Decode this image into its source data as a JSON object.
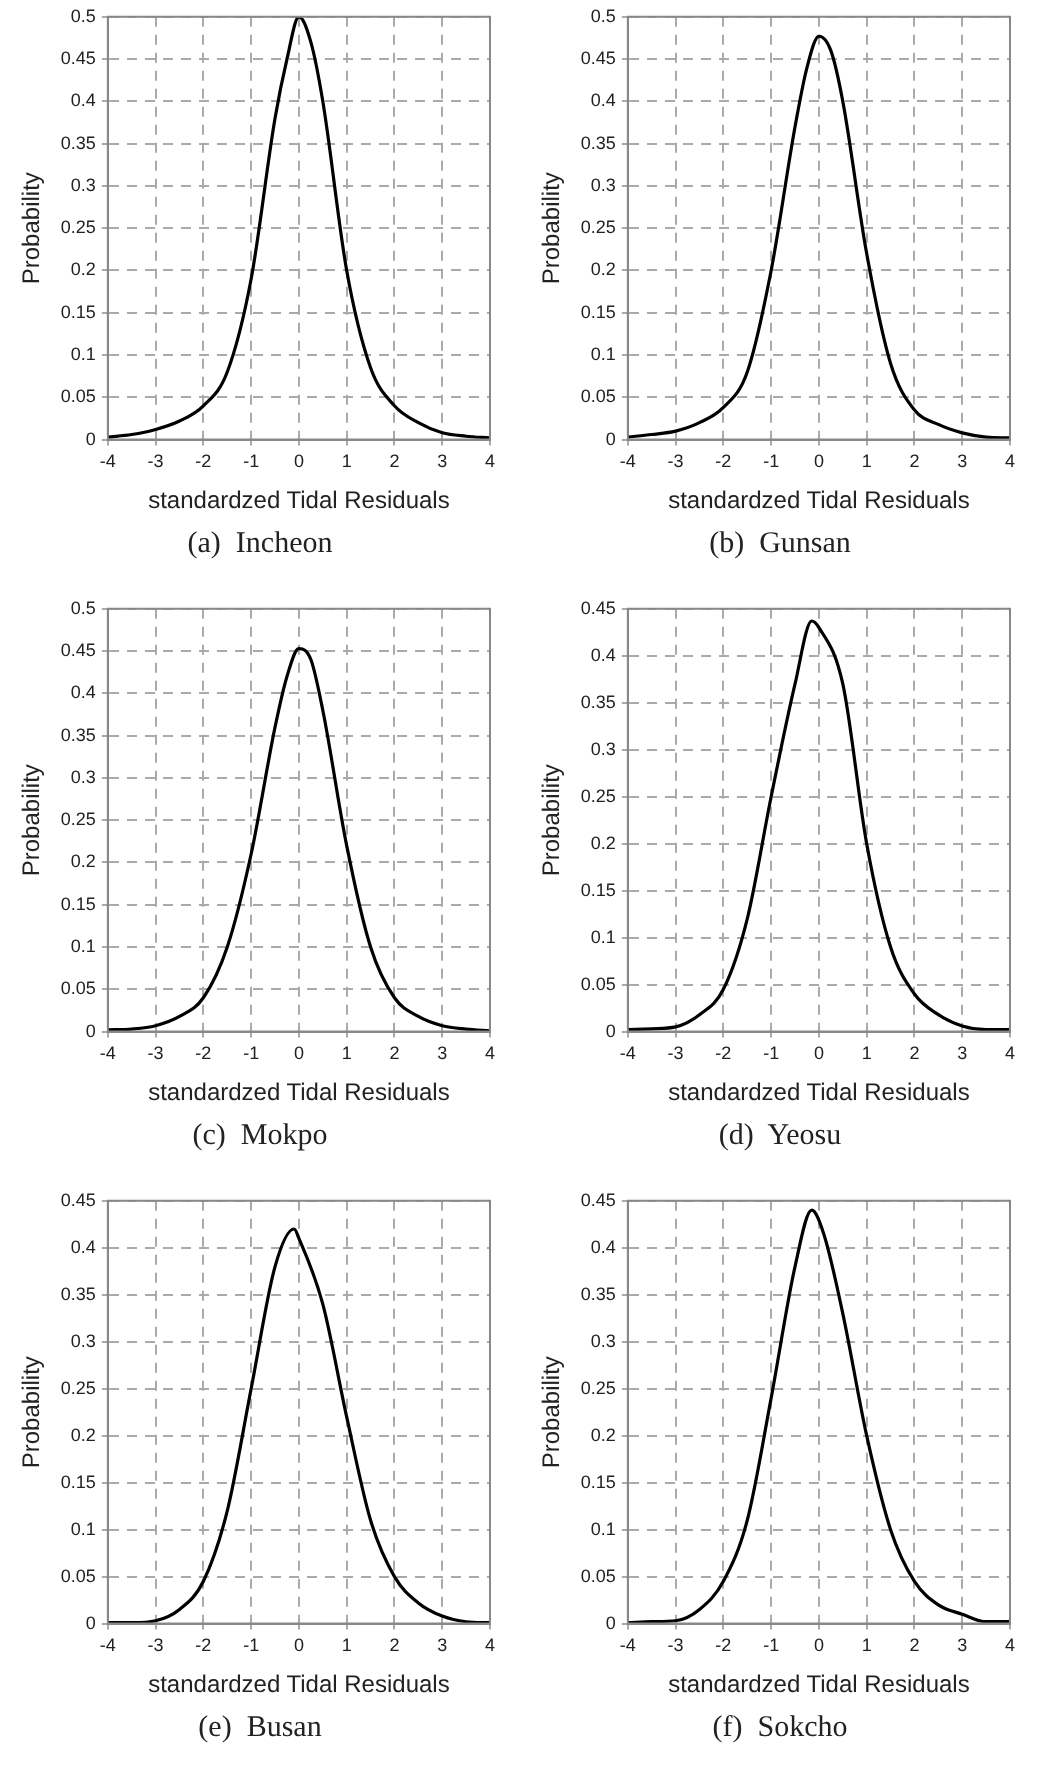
{
  "chart_data": [
    {
      "type": "line",
      "title": "(a)  Incheon",
      "xlabel": "standardzed Tidal Residuals",
      "ylabel": "Probability",
      "xlim": [
        -4,
        4
      ],
      "xticks": [
        -4,
        -3,
        -2,
        -1,
        0,
        1,
        2,
        3,
        4
      ],
      "ylim": [
        0,
        0.5
      ],
      "yticks": [
        0,
        0.05,
        0.1,
        0.15,
        0.2,
        0.25,
        0.3,
        0.35,
        0.4,
        0.45,
        0.5
      ],
      "grid": true,
      "legend": false,
      "marker": "none",
      "line_style": "solid",
      "x": [
        -4,
        -3.5,
        -3,
        -2.5,
        -2,
        -1.5,
        -1,
        -0.5,
        -0.25,
        0,
        0.25,
        0.5,
        1,
        1.5,
        2,
        2.5,
        3,
        3.5,
        4
      ],
      "series": [
        {
          "color": "#000000",
          "values": [
            0.003,
            0.006,
            0.012,
            0.022,
            0.04,
            0.08,
            0.19,
            0.38,
            0.45,
            0.5,
            0.47,
            0.4,
            0.2,
            0.085,
            0.04,
            0.02,
            0.008,
            0.004,
            0.002
          ]
        }
      ]
    },
    {
      "type": "line",
      "title": "(b)  Gunsan",
      "xlabel": "standardzed Tidal Residuals",
      "ylabel": "Probability",
      "xlim": [
        -4,
        4
      ],
      "xticks": [
        -4,
        -3,
        -2,
        -1,
        0,
        1,
        2,
        3,
        4
      ],
      "ylim": [
        0,
        0.5
      ],
      "yticks": [
        0,
        0.05,
        0.1,
        0.15,
        0.2,
        0.25,
        0.3,
        0.35,
        0.4,
        0.45,
        0.5
      ],
      "grid": true,
      "legend": false,
      "marker": "none",
      "line_style": "solid",
      "x": [
        -4,
        -3.5,
        -3,
        -2.5,
        -2,
        -1.5,
        -1,
        -0.5,
        -0.25,
        0,
        0.25,
        0.5,
        1,
        1.5,
        2,
        2.5,
        3,
        3.5,
        4
      ],
      "series": [
        {
          "color": "#000000",
          "values": [
            0.003,
            0.006,
            0.01,
            0.02,
            0.038,
            0.08,
            0.2,
            0.37,
            0.44,
            0.477,
            0.46,
            0.4,
            0.22,
            0.09,
            0.035,
            0.018,
            0.008,
            0.003,
            0.002
          ]
        }
      ]
    },
    {
      "type": "line",
      "title": "(c)  Mokpo",
      "xlabel": "standardzed Tidal Residuals",
      "ylabel": "Probability",
      "xlim": [
        -4,
        4
      ],
      "xticks": [
        -4,
        -3,
        -2,
        -1,
        0,
        1,
        2,
        3,
        4
      ],
      "ylim": [
        0,
        0.5
      ],
      "yticks": [
        0,
        0.05,
        0.1,
        0.15,
        0.2,
        0.25,
        0.3,
        0.35,
        0.4,
        0.45,
        0.5
      ],
      "grid": true,
      "legend": false,
      "marker": "none",
      "line_style": "solid",
      "x": [
        -4,
        -3.5,
        -3,
        -2.5,
        -2,
        -1.5,
        -1,
        -0.5,
        -0.25,
        0,
        0.25,
        0.5,
        1,
        1.5,
        2,
        2.5,
        3,
        3.5,
        4
      ],
      "series": [
        {
          "color": "#000000",
          "values": [
            0.002,
            0.003,
            0.007,
            0.018,
            0.04,
            0.1,
            0.21,
            0.36,
            0.42,
            0.453,
            0.44,
            0.38,
            0.22,
            0.1,
            0.04,
            0.018,
            0.007,
            0.003,
            0.001
          ]
        }
      ]
    },
    {
      "type": "line",
      "title": "(d)  Yeosu",
      "xlabel": "standardzed Tidal Residuals",
      "ylabel": "Probability",
      "xlim": [
        -4,
        4
      ],
      "xticks": [
        -4,
        -3,
        -2,
        -1,
        0,
        1,
        2,
        3,
        4
      ],
      "ylim": [
        0,
        0.45
      ],
      "yticks": [
        0,
        0.05,
        0.1,
        0.15,
        0.2,
        0.25,
        0.3,
        0.35,
        0.4,
        0.45
      ],
      "grid": true,
      "legend": false,
      "marker": "none",
      "line_style": "solid",
      "x": [
        -4,
        -3.5,
        -3,
        -2.5,
        -2,
        -1.5,
        -1,
        -0.5,
        -0.15,
        0,
        0.5,
        1,
        1.5,
        2,
        2.5,
        3,
        3.5,
        4
      ],
      "series": [
        {
          "color": "#000000",
          "values": [
            0.002,
            0.003,
            0.005,
            0.018,
            0.045,
            0.12,
            0.25,
            0.37,
            0.437,
            0.43,
            0.37,
            0.2,
            0.09,
            0.04,
            0.018,
            0.006,
            0.002,
            0.002
          ]
        }
      ]
    },
    {
      "type": "line",
      "title": "(e)  Busan",
      "xlabel": "standardzed Tidal Residuals",
      "ylabel": "Probability",
      "xlim": [
        -4,
        4
      ],
      "xticks": [
        -4,
        -3,
        -2,
        -1,
        0,
        1,
        2,
        3,
        4
      ],
      "ylim": [
        0,
        0.45
      ],
      "yticks": [
        0,
        0.05,
        0.1,
        0.15,
        0.2,
        0.25,
        0.3,
        0.35,
        0.4,
        0.45
      ],
      "grid": true,
      "legend": false,
      "marker": "none",
      "line_style": "solid",
      "x": [
        -4,
        -3.5,
        -3,
        -2.5,
        -2,
        -1.5,
        -1,
        -0.5,
        -0.1,
        0,
        0.5,
        1,
        1.5,
        2,
        2.5,
        3,
        3.5,
        4
      ],
      "series": [
        {
          "color": "#000000",
          "values": [
            0.001,
            0.001,
            0.003,
            0.015,
            0.045,
            0.12,
            0.25,
            0.38,
            0.42,
            0.41,
            0.34,
            0.22,
            0.11,
            0.05,
            0.022,
            0.008,
            0.002,
            0.001
          ]
        }
      ]
    },
    {
      "type": "line",
      "title": "(f)  Sokcho",
      "xlabel": "standardzed Tidal Residuals",
      "ylabel": "Probability",
      "xlim": [
        -4,
        4
      ],
      "xticks": [
        -4,
        -3,
        -2,
        -1,
        0,
        1,
        2,
        3,
        4
      ],
      "ylim": [
        0,
        0.45
      ],
      "yticks": [
        0,
        0.05,
        0.1,
        0.15,
        0.2,
        0.25,
        0.3,
        0.35,
        0.4,
        0.45
      ],
      "grid": true,
      "legend": false,
      "marker": "none",
      "line_style": "solid",
      "x": [
        -4,
        -3.5,
        -3,
        -2.5,
        -2,
        -1.5,
        -1,
        -0.5,
        -0.15,
        0.1,
        0.5,
        1,
        1.5,
        2,
        2.5,
        3,
        3.5,
        4
      ],
      "series": [
        {
          "color": "#000000",
          "values": [
            0.001,
            0.002,
            0.003,
            0.015,
            0.045,
            0.11,
            0.24,
            0.38,
            0.44,
            0.415,
            0.33,
            0.2,
            0.1,
            0.045,
            0.02,
            0.01,
            0.002,
            0.002
          ]
        }
      ]
    }
  ]
}
